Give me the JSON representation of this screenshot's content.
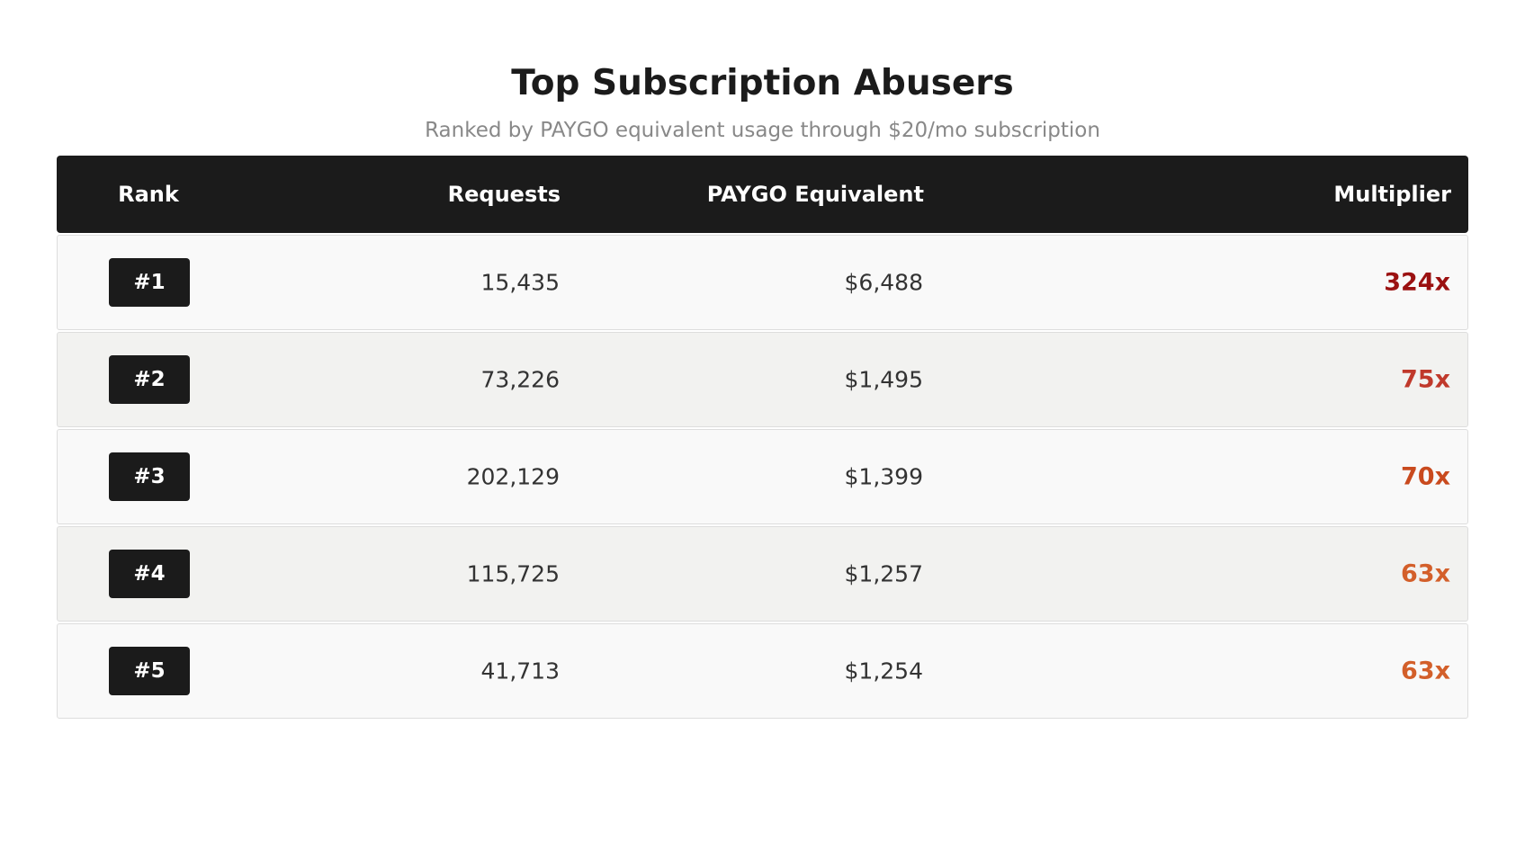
{
  "title": "Top Subscription Abusers",
  "subtitle": "Ranked by PAYGO equivalent usage through $20/mo subscription",
  "columns": [
    "Rank",
    "Requests",
    "PAYGO Equivalent",
    "Multiplier"
  ],
  "rows": [
    {
      "rank": "#1",
      "requests": "15,435",
      "paygo": "$6,488",
      "multiplier": "324x",
      "color": "#9b1111"
    },
    {
      "rank": "#2",
      "requests": "73,226",
      "paygo": "$1,495",
      "multiplier": "75x",
      "color": "#c0392b"
    },
    {
      "rank": "#3",
      "requests": "202,129",
      "paygo": "$1,399",
      "multiplier": "70x",
      "color": "#c94a1e"
    },
    {
      "rank": "#4",
      "requests": "115,725",
      "paygo": "$1,257",
      "multiplier": "63x",
      "color": "#d35f2a"
    },
    {
      "rank": "#5",
      "requests": "41,713",
      "paygo": "$1,254",
      "multiplier": "63x",
      "color": "#d35f2a"
    }
  ]
}
